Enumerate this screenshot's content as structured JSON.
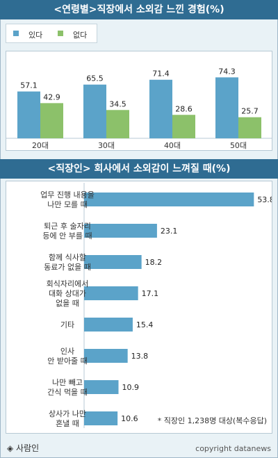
{
  "chart_data": [
    {
      "type": "bar",
      "title": "<연령별>직장에서 소외감 느낀 경험(%)",
      "categories": [
        "20대",
        "30대",
        "40대",
        "50대"
      ],
      "series": [
        {
          "name": "있다",
          "values": [
            57.1,
            65.5,
            71.4,
            74.3
          ],
          "color": "#5ba3c9"
        },
        {
          "name": "없다",
          "values": [
            42.9,
            34.5,
            28.6,
            25.7
          ],
          "color": "#8cc16a"
        }
      ],
      "ylim": [
        0,
        100
      ],
      "legend": "top-left"
    },
    {
      "type": "bar",
      "orientation": "horizontal",
      "title": "<직장인> 회사에서 소외감이 느껴질 때(%)",
      "categories": [
        "업무 진행 내용을\n나만 모를 때",
        "퇴근 후 술자리\n등에 안 부를 때",
        "함께 식사할\n동료가 없을 때",
        "회식자리에서\n대화 상대가\n없을 때",
        "기타",
        "인사\n안 받아줄 때",
        "나만 빼고\n간식 먹을 때",
        "상사가 나만\n혼낼 때"
      ],
      "values": [
        53.8,
        23.1,
        18.2,
        17.1,
        15.4,
        13.8,
        10.9,
        10.6
      ],
      "color": "#5ba3c9",
      "xlim": [
        0,
        60
      ],
      "annotation": "* 직장인 1,238명 대상(복수응답)"
    }
  ],
  "footer": {
    "source": "◈ 사람인",
    "copyright": "copyright datanews"
  }
}
